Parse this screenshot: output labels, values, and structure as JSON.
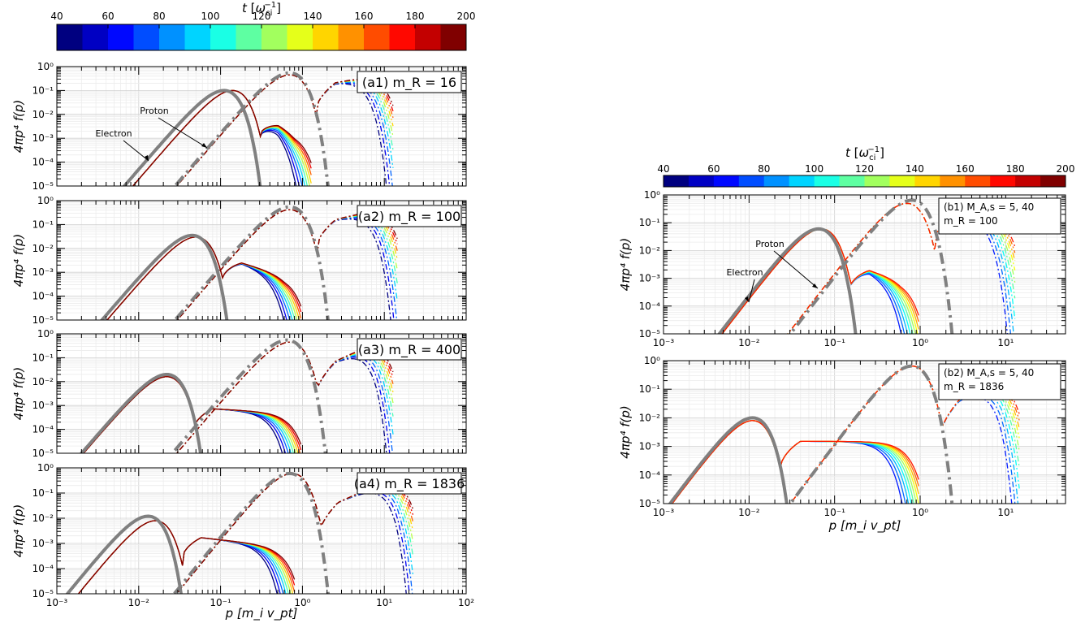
{
  "chart_data": {
    "type": "line",
    "colorbar_label": "t [ω_ci^-1]",
    "colorbar_ticks": [
      "40",
      "60",
      "80",
      "100",
      "120",
      "140",
      "160",
      "180",
      "200"
    ],
    "colormap": "jet",
    "colorbar_range": [
      40,
      200
    ],
    "y_label": "4πp⁴ f(p)",
    "x_label": "p [m_i v_pt]",
    "x_scale": "log",
    "y_scale": "log",
    "grid": true,
    "maxwellian_reference": {
      "color": "#808080",
      "electron_style": "solid",
      "proton_style": "dashdot"
    },
    "time_series_count": 10,
    "panels": [
      {
        "id": "a1",
        "label": "(a1) m_R = 16",
        "xlim": [
          0.001,
          100
        ],
        "ylim": [
          1e-05,
          1
        ],
        "x_ticks": [
          "10⁻³",
          "10⁻²",
          "10⁻¹",
          "10⁰",
          "10¹",
          "10²"
        ],
        "y_ticks": [
          "10⁰",
          "10⁻¹",
          "10⁻²",
          "10⁻³",
          "10⁻⁴",
          "10⁻⁵"
        ],
        "annotations": [
          "Proton",
          "Electron"
        ],
        "electron": {
          "peak_p": 0.14,
          "peak_f": 0.1,
          "tail": [
            0.009,
            0.002
          ],
          "cutoff": 0.8
        },
        "proton": {
          "peak_p": 0.7,
          "peak_f": 0.45,
          "tail": [
            0.15,
            0.5
          ],
          "cutoff": 8
        },
        "max_e": {
          "peak_p": 0.11,
          "peak_f": 0.1
        },
        "max_p": {
          "peak_p": 0.7,
          "peak_f": 0.55
        }
      },
      {
        "id": "a2",
        "label": "(a2) m_R = 100",
        "xlim": [
          0.001,
          100
        ],
        "ylim": [
          1e-05,
          1
        ],
        "x_ticks": [
          "10⁻³",
          "10⁻²",
          "10⁻¹",
          "10⁰",
          "10¹",
          "10²"
        ],
        "y_ticks": [
          "10⁰",
          "10⁻¹",
          "10⁻²",
          "10⁻³",
          "10⁻⁴",
          "10⁻⁵"
        ],
        "annotations": [],
        "electron": {
          "peak_p": 0.05,
          "peak_f": 0.03,
          "tail": [
            0.004,
            0.0008
          ],
          "cutoff": 0.6
        },
        "proton": {
          "peak_p": 0.7,
          "peak_f": 0.42,
          "tail": [
            0.1,
            0.55
          ],
          "cutoff": 9
        },
        "max_e": {
          "peak_p": 0.045,
          "peak_f": 0.035
        },
        "max_p": {
          "peak_p": 0.7,
          "peak_f": 0.55
        }
      },
      {
        "id": "a3",
        "label": "(a3) m_R = 400",
        "xlim": [
          0.001,
          100
        ],
        "ylim": [
          1e-05,
          1
        ],
        "x_ticks": [
          "10⁻³",
          "10⁻²",
          "10⁻¹",
          "10⁰",
          "10¹",
          "10²"
        ],
        "y_ticks": [
          "10⁰",
          "10⁻¹",
          "10⁻²",
          "10⁻³",
          "10⁻⁴",
          "10⁻⁵"
        ],
        "annotations": [],
        "electron": {
          "peak_p": 0.022,
          "peak_f": 0.016,
          "tail": [
            0.0008,
            0.0005
          ],
          "cutoff": 0.6
        },
        "proton": {
          "peak_p": 0.7,
          "peak_f": 0.45,
          "tail": [
            0.03,
            0.55
          ],
          "cutoff": 8
        },
        "max_e": {
          "peak_p": 0.022,
          "peak_f": 0.02
        },
        "max_p": {
          "peak_p": 0.65,
          "peak_f": 0.55
        }
      },
      {
        "id": "a4",
        "label": "(a4) m_R = 1836",
        "xlim": [
          0.001,
          100
        ],
        "ylim": [
          1e-05,
          1
        ],
        "x_ticks": [
          "10⁻³",
          "10⁻²",
          "10⁻¹",
          "10⁰",
          "10¹",
          "10²"
        ],
        "y_ticks": [
          "10⁰",
          "10⁻¹",
          "10⁻²",
          "10⁻³",
          "10⁻⁴",
          "10⁻⁵"
        ],
        "annotations": [],
        "electron": {
          "peak_p": 0.016,
          "peak_f": 0.008,
          "tail": [
            0.002,
            0.0008
          ],
          "cutoff": 0.5
        },
        "proton": {
          "peak_p": 0.75,
          "peak_f": 0.6,
          "tail": [
            0.02,
            0.5
          ],
          "cutoff": 14
        },
        "max_e": {
          "peak_p": 0.013,
          "peak_f": 0.012
        },
        "max_p": {
          "peak_p": 0.7,
          "peak_f": 0.6
        }
      },
      {
        "id": "b1",
        "label_lines": [
          "(b1) M_A,s = 5, 40",
          "m_R = 100"
        ],
        "xlim": [
          0.001,
          50
        ],
        "ylim": [
          1e-05,
          1
        ],
        "x_ticks": [
          "10⁻³",
          "10⁻²",
          "10⁻¹",
          "10⁰",
          "10¹"
        ],
        "y_ticks": [
          "10⁰",
          "10⁻¹",
          "10⁻²",
          "10⁻³",
          "10⁻⁴",
          "10⁻⁵"
        ],
        "annotations": [
          "Proton",
          "Electron"
        ],
        "electron": {
          "peak_p": 0.07,
          "peak_f": 0.06,
          "tail": [
            0.003,
            0.001
          ],
          "cutoff": 0.6
        },
        "proton": {
          "peak_p": 0.7,
          "peak_f": 0.5,
          "tail": [
            0.2,
            0.3
          ],
          "cutoff": 8
        },
        "max_e": {
          "peak_p": 0.065,
          "peak_f": 0.06
        },
        "max_p": {
          "peak_p": 0.8,
          "peak_f": 0.65
        }
      },
      {
        "id": "b2",
        "label_lines": [
          "(b2) M_A,s = 5, 40",
          "m_R = 1836"
        ],
        "xlim": [
          0.001,
          50
        ],
        "ylim": [
          1e-05,
          1
        ],
        "x_ticks": [
          "10⁻³",
          "10⁻²",
          "10⁻¹",
          "10⁰",
          "10¹"
        ],
        "y_ticks": [
          "10⁰",
          "10⁻¹",
          "10⁻²",
          "10⁻³",
          "10⁻⁴",
          "10⁻⁵"
        ],
        "annotations": [],
        "electron": {
          "peak_p": 0.011,
          "peak_f": 0.008,
          "tail": [
            0.0015,
            0.0015
          ],
          "cutoff": 0.6
        },
        "proton": {
          "peak_p": 0.8,
          "peak_f": 0.65,
          "tail": [
            0.02,
            0.3
          ],
          "cutoff": 9
        },
        "max_e": {
          "peak_p": 0.011,
          "peak_f": 0.01
        },
        "max_p": {
          "peak_p": 0.8,
          "peak_f": 0.65
        }
      }
    ]
  }
}
